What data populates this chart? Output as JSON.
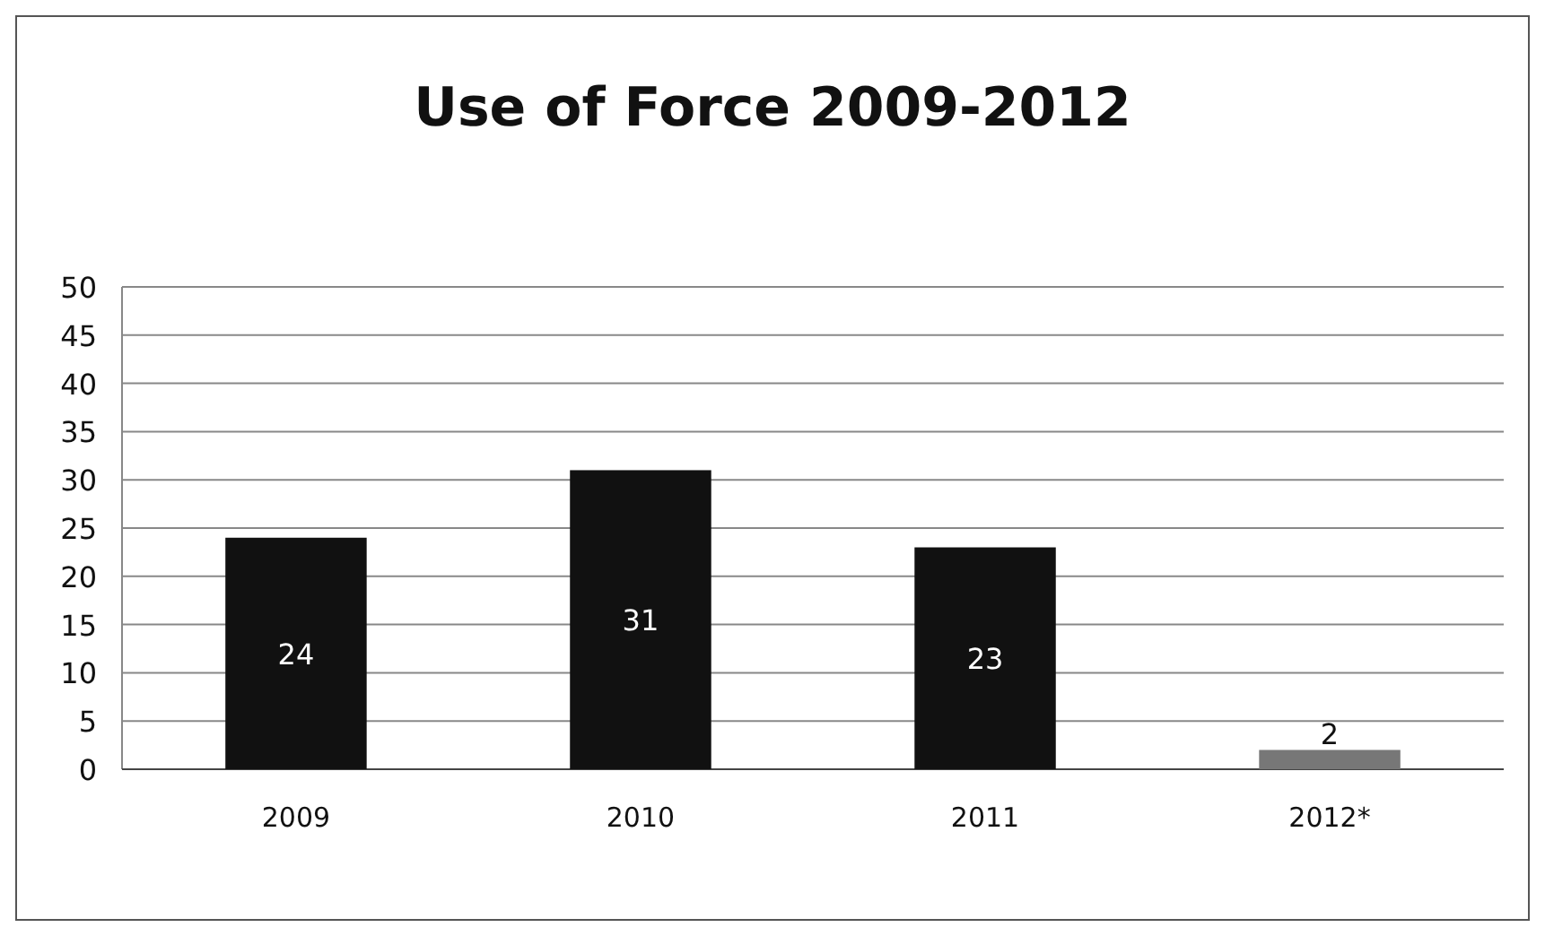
{
  "chart_data": {
    "type": "bar",
    "title": "Use of Force 2009-2012",
    "categories": [
      "2009",
      "2010",
      "2011",
      "2012*"
    ],
    "values": [
      24,
      31,
      23,
      2
    ],
    "colors": [
      "#111111",
      "#111111",
      "#111111",
      "#777777"
    ],
    "ylim": [
      0,
      50
    ],
    "yticks": [
      0,
      5,
      10,
      15,
      20,
      25,
      30,
      35,
      40,
      45,
      50
    ],
    "grid": "y",
    "data_labels": true
  }
}
